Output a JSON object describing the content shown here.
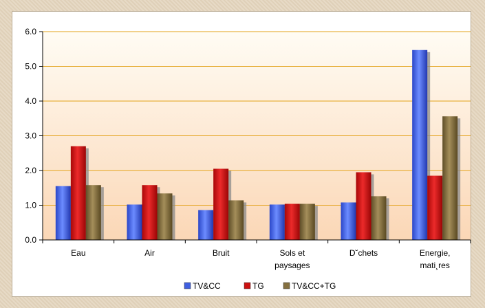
{
  "chart_data": {
    "type": "bar",
    "categories": [
      [
        "Eau"
      ],
      [
        "Air"
      ],
      [
        "Bruit"
      ],
      [
        "Sols et",
        "paysages"
      ],
      [
        "D˘chets"
      ],
      [
        "Energie,",
        "mati¸res"
      ]
    ],
    "series": [
      {
        "name": "TV&CC",
        "color": "#3f5fe0",
        "values": [
          1.55,
          1.02,
          0.86,
          1.02,
          1.08,
          5.47
        ]
      },
      {
        "name": "TG",
        "color": "#cc1111",
        "values": [
          2.7,
          1.58,
          2.05,
          1.04,
          1.95,
          1.85
        ]
      },
      {
        "name": "TV&CC+TG",
        "color": "#857040",
        "values": [
          1.58,
          1.34,
          1.14,
          1.04,
          1.26,
          3.56
        ]
      }
    ],
    "ylim": [
      0,
      6
    ],
    "yticks": [
      "0.0",
      "1.0",
      "2.0",
      "3.0",
      "4.0",
      "5.0",
      "6.0"
    ],
    "grid": true,
    "legend_position": "bottom",
    "background": "gradient cream-to-peach",
    "gridline_color": "#e3a21a"
  }
}
